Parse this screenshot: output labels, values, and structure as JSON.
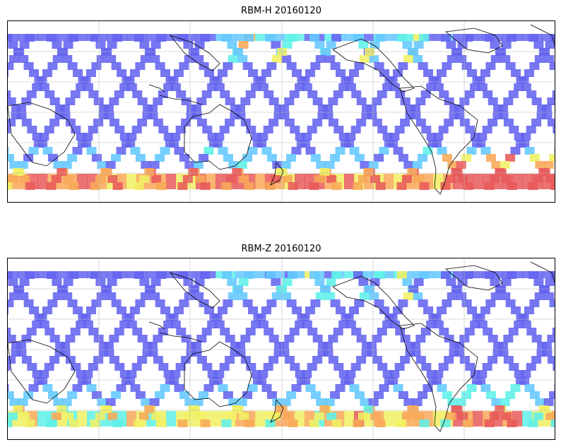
{
  "panels": [
    {
      "title": "RBM-H 20160120",
      "map": "swath-map",
      "colormap": "jet"
    },
    {
      "title": "RBM-Z 20160120",
      "map": "swath-map",
      "colormap": "jet"
    }
  ],
  "gridlines": true,
  "colors": {
    "low": "#6464f0",
    "mid": "#64c8ff",
    "cyan": "#5ef0e8",
    "yellow": "#f0f064",
    "orange": "#f8a858",
    "high": "#e85a5a"
  }
}
